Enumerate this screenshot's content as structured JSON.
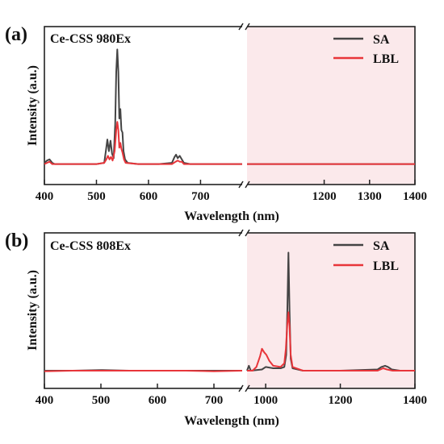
{
  "figure": {
    "xlabel": "Wavelength (nm)",
    "ylabel": "Intensity (a.u.)"
  },
  "colors": {
    "SA": "#444444",
    "LBL": "#e8353a",
    "shade": "#fbe9eb"
  },
  "chart_data": [
    {
      "panel_label": "(a)",
      "title": "Ce-CSS 980Ex",
      "type": "line",
      "xlabel": "Wavelength (nm)",
      "ylabel": "Intensity (a.u.)",
      "legend": {
        "position": "top-right",
        "entries": [
          "SA",
          "LBL"
        ]
      },
      "x_axis_break": true,
      "left_segment": {
        "xlim": [
          400,
          780
        ],
        "ticks": [
          400,
          500,
          600,
          700
        ]
      },
      "right_segment": {
        "xlim": [
          1030,
          1400
        ],
        "ticks": [
          1200,
          1300,
          1400
        ],
        "shaded": true
      },
      "ylim": [
        0,
        1.05
      ],
      "series": [
        {
          "name": "SA",
          "points": [
            [
              400,
              0.02
            ],
            [
              405,
              0.04
            ],
            [
              410,
              0.05
            ],
            [
              415,
              0.02
            ],
            [
              420,
              0.01
            ],
            [
              450,
              0.01
            ],
            [
              500,
              0.01
            ],
            [
              515,
              0.02
            ],
            [
              518,
              0.12
            ],
            [
              521,
              0.22
            ],
            [
              524,
              0.12
            ],
            [
              527,
              0.21
            ],
            [
              530,
              0.1
            ],
            [
              533,
              0.06
            ],
            [
              536,
              0.35
            ],
            [
              538,
              0.8
            ],
            [
              540,
              0.99
            ],
            [
              542,
              0.8
            ],
            [
              544,
              0.4
            ],
            [
              546,
              0.48
            ],
            [
              548,
              0.3
            ],
            [
              550,
              0.28
            ],
            [
              552,
              0.12
            ],
            [
              555,
              0.05
            ],
            [
              560,
              0.02
            ],
            [
              580,
              0.01
            ],
            [
              620,
              0.01
            ],
            [
              645,
              0.02
            ],
            [
              650,
              0.07
            ],
            [
              653,
              0.09
            ],
            [
              656,
              0.06
            ],
            [
              660,
              0.08
            ],
            [
              664,
              0.05
            ],
            [
              668,
              0.02
            ],
            [
              680,
              0.01
            ],
            [
              730,
              0.01
            ],
            [
              780,
              0.01
            ]
          ],
          "right_points": [
            [
              1030,
              0.01
            ],
            [
              1400,
              0.01
            ]
          ]
        },
        {
          "name": "LBL",
          "points": [
            [
              400,
              0.01
            ],
            [
              405,
              0.02
            ],
            [
              410,
              0.03
            ],
            [
              415,
              0.01
            ],
            [
              450,
              0.01
            ],
            [
              500,
              0.01
            ],
            [
              515,
              0.02
            ],
            [
              519,
              0.05
            ],
            [
              522,
              0.08
            ],
            [
              525,
              0.05
            ],
            [
              528,
              0.07
            ],
            [
              531,
              0.04
            ],
            [
              535,
              0.12
            ],
            [
              538,
              0.3
            ],
            [
              540,
              0.37
            ],
            [
              542,
              0.3
            ],
            [
              544,
              0.15
            ],
            [
              546,
              0.19
            ],
            [
              548,
              0.14
            ],
            [
              550,
              0.11
            ],
            [
              553,
              0.05
            ],
            [
              556,
              0.02
            ],
            [
              580,
              0.01
            ],
            [
              645,
              0.01
            ],
            [
              652,
              0.03
            ],
            [
              656,
              0.04
            ],
            [
              660,
              0.03
            ],
            [
              664,
              0.03
            ],
            [
              668,
              0.01
            ],
            [
              780,
              0.01
            ]
          ],
          "right_points": [
            [
              1030,
              0.01
            ],
            [
              1400,
              0.01
            ]
          ]
        }
      ]
    },
    {
      "panel_label": "(b)",
      "title": "Ce-CSS 808Ex",
      "type": "line",
      "xlabel": "Wavelength (nm)",
      "ylabel": "Intensity (a.u.)",
      "legend": {
        "position": "top-right",
        "entries": [
          "SA",
          "LBL"
        ]
      },
      "x_axis_break": true,
      "left_segment": {
        "xlim": [
          400,
          750
        ],
        "ticks": [
          400,
          500,
          600,
          700
        ]
      },
      "right_segment": {
        "xlim": [
          950,
          1400
        ],
        "ticks": [
          1000,
          1200,
          1400
        ],
        "shaded": true
      },
      "ylim": [
        0,
        1.05
      ],
      "series": [
        {
          "name": "SA",
          "points": [
            [
              400,
              0.02
            ],
            [
              450,
              0.02
            ],
            [
              500,
              0.025
            ],
            [
              550,
              0.02
            ],
            [
              600,
              0.02
            ],
            [
              650,
              0.02
            ],
            [
              700,
              0.02
            ],
            [
              750,
              0.02
            ]
          ],
          "right_points": [
            [
              950,
              0.02
            ],
            [
              955,
              0.06
            ],
            [
              960,
              0.02
            ],
            [
              990,
              0.03
            ],
            [
              1000,
              0.05
            ],
            [
              1020,
              0.04
            ],
            [
              1040,
              0.04
            ],
            [
              1050,
              0.05
            ],
            [
              1055,
              0.15
            ],
            [
              1058,
              0.5
            ],
            [
              1061,
              0.99
            ],
            [
              1064,
              0.5
            ],
            [
              1067,
              0.12
            ],
            [
              1072,
              0.04
            ],
            [
              1100,
              0.02
            ],
            [
              1200,
              0.02
            ],
            [
              1300,
              0.03
            ],
            [
              1310,
              0.05
            ],
            [
              1320,
              0.06
            ],
            [
              1328,
              0.05
            ],
            [
              1338,
              0.03
            ],
            [
              1360,
              0.02
            ],
            [
              1400,
              0.02
            ]
          ]
        },
        {
          "name": "LBL",
          "points": [
            [
              400,
              0.015
            ],
            [
              450,
              0.02
            ],
            [
              500,
              0.02
            ],
            [
              550,
              0.02
            ],
            [
              600,
              0.02
            ],
            [
              650,
              0.02
            ],
            [
              700,
              0.015
            ],
            [
              750,
              0.02
            ]
          ],
          "right_points": [
            [
              950,
              0.02
            ],
            [
              965,
              0.02
            ],
            [
              975,
              0.05
            ],
            [
              985,
              0.14
            ],
            [
              990,
              0.2
            ],
            [
              996,
              0.17
            ],
            [
              1002,
              0.15
            ],
            [
              1010,
              0.1
            ],
            [
              1020,
              0.06
            ],
            [
              1040,
              0.05
            ],
            [
              1050,
              0.08
            ],
            [
              1054,
              0.2
            ],
            [
              1058,
              0.4
            ],
            [
              1061,
              0.5
            ],
            [
              1064,
              0.38
            ],
            [
              1067,
              0.15
            ],
            [
              1072,
              0.05
            ],
            [
              1100,
              0.02
            ],
            [
              1300,
              0.02
            ],
            [
              1315,
              0.04
            ],
            [
              1325,
              0.03
            ],
            [
              1340,
              0.02
            ],
            [
              1400,
              0.02
            ]
          ]
        }
      ]
    }
  ]
}
